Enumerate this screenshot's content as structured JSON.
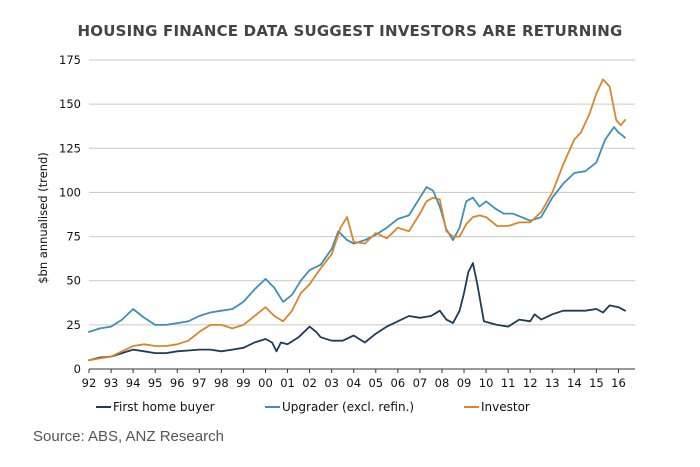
{
  "chart_data": {
    "type": "line",
    "title": "HOUSING FINANCE DATA SUGGEST INVESTORS ARE RETURNING",
    "ylabel": "$bn annualised (trend)",
    "xlabel": "",
    "ylim": [
      0,
      175
    ],
    "yticks": [
      0,
      25,
      50,
      75,
      100,
      125,
      150,
      175
    ],
    "xlim": [
      1992,
      2016.75
    ],
    "xticks": [
      "92",
      "93",
      "94",
      "95",
      "96",
      "97",
      "98",
      "99",
      "00",
      "01",
      "02",
      "03",
      "04",
      "05",
      "06",
      "07",
      "08",
      "09",
      "10",
      "11",
      "12",
      "13",
      "14",
      "15",
      "16"
    ],
    "grid": "horizontal",
    "legend_position": "bottom",
    "series": [
      {
        "name": "First home buyer",
        "color": "#1f3b57",
        "x": [
          1992.0,
          1992.5,
          1993.0,
          1993.5,
          1994.0,
          1994.5,
          1995.0,
          1995.5,
          1996.0,
          1996.5,
          1997.0,
          1997.5,
          1998.0,
          1998.5,
          1999.0,
          1999.5,
          2000.0,
          2000.3,
          2000.5,
          2000.7,
          2001.0,
          2001.5,
          2002.0,
          2002.3,
          2002.5,
          2003.0,
          2003.5,
          2004.0,
          2004.5,
          2005.0,
          2005.5,
          2006.0,
          2006.5,
          2007.0,
          2007.5,
          2007.9,
          2008.2,
          2008.5,
          2008.8,
          2009.0,
          2009.2,
          2009.4,
          2009.6,
          2009.9,
          2010.2,
          2010.5,
          2011.0,
          2011.5,
          2012.0,
          2012.2,
          2012.5,
          2013.0,
          2013.5,
          2014.0,
          2014.5,
          2015.0,
          2015.3,
          2015.6,
          2016.0,
          2016.3
        ],
        "values": [
          5,
          6.5,
          7,
          9,
          11,
          10,
          9,
          9,
          10,
          10.5,
          11,
          11,
          10,
          11,
          12,
          15,
          17,
          15,
          10,
          15,
          14,
          18,
          24,
          21,
          18,
          16,
          16,
          19,
          15,
          20,
          24,
          27,
          30,
          29,
          30,
          33,
          28,
          26,
          33,
          43,
          55,
          60,
          48,
          27,
          26,
          25,
          24,
          28,
          27,
          31,
          28,
          31,
          33,
          33,
          33,
          34,
          32,
          36,
          35,
          33
        ]
      },
      {
        "name": "Upgrader (excl. refin.)",
        "color": "#3f8fb8",
        "x": [
          1992.0,
          1992.5,
          1993.0,
          1993.5,
          1994.0,
          1994.5,
          1995.0,
          1995.5,
          1996.0,
          1996.5,
          1997.0,
          1997.5,
          1998.0,
          1998.5,
          1999.0,
          1999.5,
          2000.0,
          2000.4,
          2000.8,
          2001.2,
          2001.6,
          2002.0,
          2002.5,
          2003.0,
          2003.3,
          2003.7,
          2004.0,
          2004.5,
          2005.0,
          2005.5,
          2006.0,
          2006.5,
          2007.0,
          2007.3,
          2007.6,
          2007.9,
          2008.2,
          2008.5,
          2008.8,
          2009.1,
          2009.4,
          2009.7,
          2010.0,
          2010.4,
          2010.8,
          2011.2,
          2011.6,
          2012.0,
          2012.5,
          2013.0,
          2013.5,
          2014.0,
          2014.5,
          2015.0,
          2015.4,
          2015.8,
          2016.0,
          2016.3
        ],
        "values": [
          21,
          23,
          24,
          28,
          34,
          29,
          25,
          25,
          26,
          27,
          30,
          32,
          33,
          34,
          38,
          45,
          51,
          46,
          38,
          42,
          50,
          56,
          59,
          68,
          78,
          73,
          71,
          73,
          76,
          80,
          85,
          87,
          97,
          103,
          101,
          92,
          79,
          73,
          80,
          95,
          97,
          92,
          95,
          91,
          88,
          88,
          86,
          84,
          86,
          97,
          105,
          111,
          112,
          117,
          130,
          137,
          134,
          131
        ]
      },
      {
        "name": "Investor",
        "color": "#d9862b",
        "x": [
          1992.0,
          1992.5,
          1993.0,
          1993.5,
          1994.0,
          1994.5,
          1995.0,
          1995.5,
          1996.0,
          1996.5,
          1997.0,
          1997.5,
          1998.0,
          1998.5,
          1999.0,
          1999.5,
          2000.0,
          2000.4,
          2000.8,
          2001.2,
          2001.6,
          2002.0,
          2002.5,
          2003.0,
          2003.4,
          2003.7,
          2004.0,
          2004.5,
          2005.0,
          2005.5,
          2006.0,
          2006.5,
          2007.0,
          2007.3,
          2007.6,
          2007.9,
          2008.2,
          2008.5,
          2008.8,
          2009.1,
          2009.4,
          2009.7,
          2010.0,
          2010.5,
          2011.0,
          2011.5,
          2012.0,
          2012.5,
          2013.0,
          2013.5,
          2014.0,
          2014.3,
          2014.7,
          2015.0,
          2015.3,
          2015.6,
          2015.9,
          2016.1,
          2016.3
        ],
        "values": [
          5,
          6,
          7,
          10,
          13,
          14,
          13,
          13,
          14,
          16,
          21,
          25,
          25,
          23,
          25,
          30,
          35,
          30,
          27,
          33,
          43,
          48,
          57,
          65,
          80,
          86,
          72,
          71,
          77,
          74,
          80,
          78,
          88,
          95,
          97,
          96,
          78,
          75,
          75,
          82,
          86,
          87,
          86,
          81,
          81,
          83,
          83,
          89,
          100,
          116,
          130,
          134,
          145,
          156,
          164,
          160,
          141,
          138,
          141
        ]
      }
    ],
    "source": "Source: ABS, ANZ Research"
  }
}
